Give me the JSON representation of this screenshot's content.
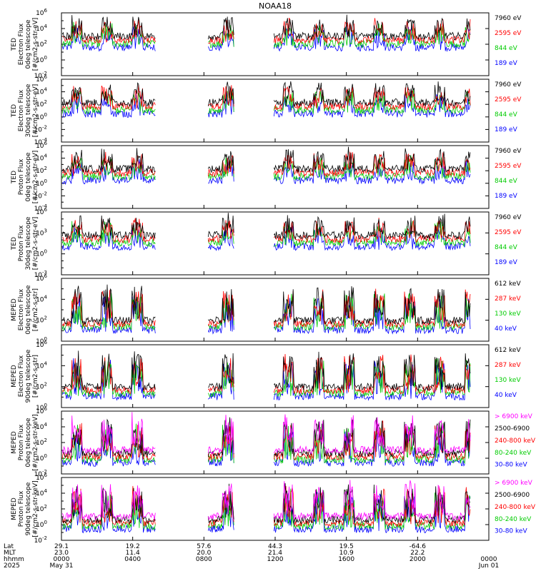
{
  "title": "NOAA18",
  "chart_data": [
    {
      "type": "line",
      "ylabel": [
        "TED",
        "Electron Flux",
        "0deg telescope",
        "[#/cm2-s-str-eV]"
      ],
      "y_log_range": [
        -2,
        6
      ],
      "y_tick_exponents": [
        -2,
        0,
        2,
        4,
        6
      ],
      "series": [
        {
          "name": "7960 eV",
          "color": "#000000"
        },
        {
          "name": "2595 eV",
          "color": "#ff0000"
        },
        {
          "name": "844 eV",
          "color": "#00cc00"
        },
        {
          "name": "189 eV",
          "color": "#0000ff"
        }
      ]
    },
    {
      "type": "line",
      "ylabel": [
        "TED",
        "Electron Flux",
        "30deg telescope",
        "[#/cm2-s-str-eV]"
      ],
      "y_log_range": [
        -4,
        6
      ],
      "y_tick_exponents": [
        -4,
        -2,
        0,
        2,
        4,
        6
      ],
      "series": [
        {
          "name": "7960 eV",
          "color": "#000000"
        },
        {
          "name": "2595 eV",
          "color": "#ff0000"
        },
        {
          "name": "844 eV",
          "color": "#00cc00"
        },
        {
          "name": "189 eV",
          "color": "#0000ff"
        }
      ]
    },
    {
      "type": "line",
      "ylabel": [
        "TED",
        "Proton Flux",
        "0deg telescope",
        "[#/cm2-s-str-eV]"
      ],
      "y_log_range": [
        -4,
        6
      ],
      "y_tick_exponents": [
        -4,
        -2,
        0,
        2,
        4,
        6
      ],
      "series": [
        {
          "name": "7960 eV",
          "color": "#000000"
        },
        {
          "name": "2595 eV",
          "color": "#ff0000"
        },
        {
          "name": "844 eV",
          "color": "#00cc00"
        },
        {
          "name": "189 eV",
          "color": "#0000ff"
        }
      ]
    },
    {
      "type": "line",
      "ylabel": [
        "TED",
        "Proton Flux",
        "30deg telescope",
        "[#/cm2-s-str-eV]"
      ],
      "y_log_range": [
        -3,
        6
      ],
      "y_tick_exponents": [
        -3,
        0,
        3,
        6
      ],
      "series": [
        {
          "name": "7960 eV",
          "color": "#000000"
        },
        {
          "name": "2595 eV",
          "color": "#ff0000"
        },
        {
          "name": "844 eV",
          "color": "#00cc00"
        },
        {
          "name": "189 eV",
          "color": "#0000ff"
        }
      ]
    },
    {
      "type": "line",
      "ylabel": [
        "MEPED",
        "Electron Flux",
        "0deg telescope",
        "[#/cm2-s-str]"
      ],
      "y_log_range": [
        0,
        6
      ],
      "y_tick_exponents": [
        0,
        2,
        4,
        6
      ],
      "series": [
        {
          "name": "612 keV",
          "color": "#000000"
        },
        {
          "name": "287 keV",
          "color": "#ff0000"
        },
        {
          "name": "130 keV",
          "color": "#00cc00"
        },
        {
          "name": "40 keV",
          "color": "#0000ff"
        }
      ]
    },
    {
      "type": "line",
      "ylabel": [
        "MEPED",
        "Electron Flux",
        "90deg telescope",
        "[#/cm2-s-str]"
      ],
      "y_log_range": [
        0,
        6
      ],
      "y_tick_exponents": [
        0,
        2,
        4,
        6
      ],
      "series": [
        {
          "name": "612 keV",
          "color": "#000000"
        },
        {
          "name": "287 keV",
          "color": "#ff0000"
        },
        {
          "name": "130 keV",
          "color": "#00cc00"
        },
        {
          "name": "40 keV",
          "color": "#0000ff"
        }
      ]
    },
    {
      "type": "line",
      "ylabel": [
        "MEPED",
        "Proton Flux",
        "0deg telescope",
        "[#/cm2-s-str-keV]"
      ],
      "y_log_range": [
        -2,
        6
      ],
      "y_tick_exponents": [
        -2,
        0,
        2,
        4,
        6
      ],
      "series": [
        {
          "name": "> 6900 keV",
          "color": "#ff00ff"
        },
        {
          "name": "2500-6900",
          "color": "#000000"
        },
        {
          "name": "240-800 keV",
          "color": "#ff0000"
        },
        {
          "name": "80-240 keV",
          "color": "#00cc00"
        },
        {
          "name": "30-80 keV",
          "color": "#0000ff"
        }
      ]
    },
    {
      "type": "line",
      "ylabel": [
        "MEPED",
        "Proton Flux",
        "90deg telescope",
        "[#/cm2-s-str-keV]"
      ],
      "y_log_range": [
        -2,
        6
      ],
      "y_tick_exponents": [
        -2,
        0,
        2,
        4,
        6
      ],
      "series": [
        {
          "name": "> 6900 keV",
          "color": "#ff00ff"
        },
        {
          "name": "2500-6900",
          "color": "#000000"
        },
        {
          "name": "240-800 keV",
          "color": "#ff0000"
        },
        {
          "name": "80-240 keV",
          "color": "#00cc00"
        },
        {
          "name": "30-80 keV",
          "color": "#0000ff"
        }
      ]
    }
  ],
  "x_axis": {
    "row_labels": [
      "Lat",
      "MLT",
      "hhmm",
      "2025"
    ],
    "ticks": [
      {
        "hour": 0,
        "lat": "29.1",
        "mlt": "23.0",
        "hhmm": "0000",
        "date": "May 31"
      },
      {
        "hour": 4,
        "lat": "19.2",
        "mlt": "11.4",
        "hhmm": "0400",
        "date": ""
      },
      {
        "hour": 8,
        "lat": "57.6",
        "mlt": "20.0",
        "hhmm": "0800",
        "date": ""
      },
      {
        "hour": 12,
        "lat": "44.3",
        "mlt": "21.4",
        "hhmm": "1200",
        "date": ""
      },
      {
        "hour": 16,
        "lat": "19.5",
        "mlt": "10.9",
        "hhmm": "1600",
        "date": ""
      },
      {
        "hour": 20,
        "lat": "-64.6",
        "mlt": "22.2",
        "hhmm": "2000",
        "date": ""
      },
      {
        "hour": 24,
        "lat": "",
        "mlt": "",
        "hhmm": "0000",
        "date": "Jun 01"
      }
    ],
    "x_range_hours": [
      0,
      24
    ],
    "data_gaps_hours": [
      [
        5.3,
        8.2
      ],
      [
        9.7,
        11.9
      ]
    ]
  }
}
